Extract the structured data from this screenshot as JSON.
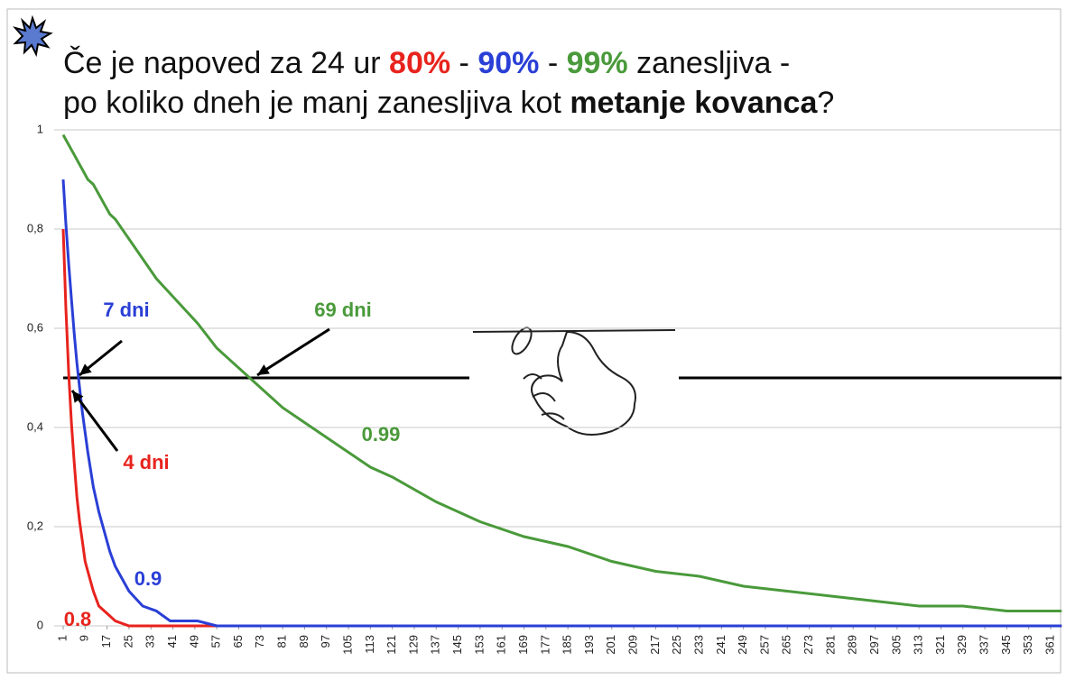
{
  "chart_data": {
    "type": "line",
    "title_lines": [
      [
        {
          "text": "Če je napoved za 24 ur "
        },
        {
          "text": "80%",
          "color": "#e8231d",
          "bold": true
        },
        {
          "text": " - "
        },
        {
          "text": "90%",
          "color": "#2a3fd6",
          "bold": true
        },
        {
          "text": " - "
        },
        {
          "text": "99%",
          "color": "#4a9a3b",
          "bold": true
        },
        {
          "text": " zanesljiva -"
        }
      ],
      [
        {
          "text": "po koliko dneh je manj zanesljiva kot "
        },
        {
          "text": "metanje kovanca",
          "bold": true
        },
        {
          "text": "?"
        }
      ]
    ],
    "x": [
      1,
      2,
      3,
      4,
      5,
      6,
      7,
      8,
      9,
      10,
      12,
      14,
      16,
      18,
      20,
      25,
      30,
      35,
      40,
      45,
      50,
      57,
      65,
      73,
      81,
      89,
      97,
      105,
      113,
      121,
      137,
      153,
      169,
      185,
      201,
      217,
      233,
      249,
      265,
      281,
      297,
      313,
      329,
      345,
      361,
      365
    ],
    "series": [
      {
        "name": "0.8",
        "color": "#e8231d",
        "values": [
          0.8,
          0.64,
          0.51,
          0.41,
          0.33,
          0.26,
          0.21,
          0.17,
          0.13,
          0.11,
          0.07,
          0.04,
          0.03,
          0.02,
          0.01,
          0,
          0,
          0,
          0,
          0,
          0,
          0,
          0,
          0,
          0,
          0,
          0,
          0,
          0,
          0,
          0,
          0,
          0,
          0,
          0,
          0,
          0,
          0,
          0,
          0,
          0,
          0,
          0,
          0,
          0,
          0
        ]
      },
      {
        "name": "0.9",
        "color": "#2a3fd6",
        "values": [
          0.9,
          0.81,
          0.73,
          0.66,
          0.59,
          0.53,
          0.48,
          0.43,
          0.39,
          0.35,
          0.28,
          0.23,
          0.19,
          0.15,
          0.12,
          0.07,
          0.04,
          0.03,
          0.01,
          0.01,
          0.01,
          0,
          0,
          0,
          0,
          0,
          0,
          0,
          0,
          0,
          0,
          0,
          0,
          0,
          0,
          0,
          0,
          0,
          0,
          0,
          0,
          0,
          0,
          0,
          0,
          0
        ]
      },
      {
        "name": "0.99",
        "color": "#4a9a3b",
        "values": [
          0.99,
          0.98,
          0.97,
          0.96,
          0.95,
          0.94,
          0.93,
          0.92,
          0.91,
          0.9,
          0.89,
          0.87,
          0.85,
          0.83,
          0.82,
          0.78,
          0.74,
          0.7,
          0.67,
          0.64,
          0.61,
          0.56,
          0.52,
          0.48,
          0.44,
          0.41,
          0.38,
          0.35,
          0.32,
          0.3,
          0.25,
          0.21,
          0.18,
          0.16,
          0.13,
          0.11,
          0.1,
          0.08,
          0.07,
          0.06,
          0.05,
          0.04,
          0.04,
          0.03,
          0.03,
          0.03
        ]
      }
    ],
    "threshold": 0.5,
    "annotations": [
      {
        "text": "7 dni",
        "color": "#2a3fd6"
      },
      {
        "text": "69 dni",
        "color": "#4a9a3b"
      },
      {
        "text": "4 dni",
        "color": "#e8231d"
      }
    ],
    "xlim": [
      1,
      365
    ],
    "ylim": [
      0,
      1
    ],
    "xticks": [
      1,
      9,
      17,
      25,
      33,
      41,
      49,
      57,
      65,
      73,
      81,
      89,
      97,
      105,
      113,
      121,
      129,
      137,
      145,
      153,
      161,
      169,
      177,
      185,
      193,
      201,
      209,
      217,
      225,
      233,
      241,
      249,
      257,
      265,
      273,
      281,
      289,
      297,
      305,
      313,
      321,
      329,
      337,
      345,
      353,
      361
    ],
    "yticks": [
      0,
      {
        "value": 0.2,
        "label": "0,2"
      },
      {
        "value": 0.4,
        "label": "0,4"
      },
      {
        "value": 0.6,
        "label": "0,6"
      },
      {
        "value": 0.8,
        "label": "0,8"
      },
      1
    ],
    "grid": true
  }
}
